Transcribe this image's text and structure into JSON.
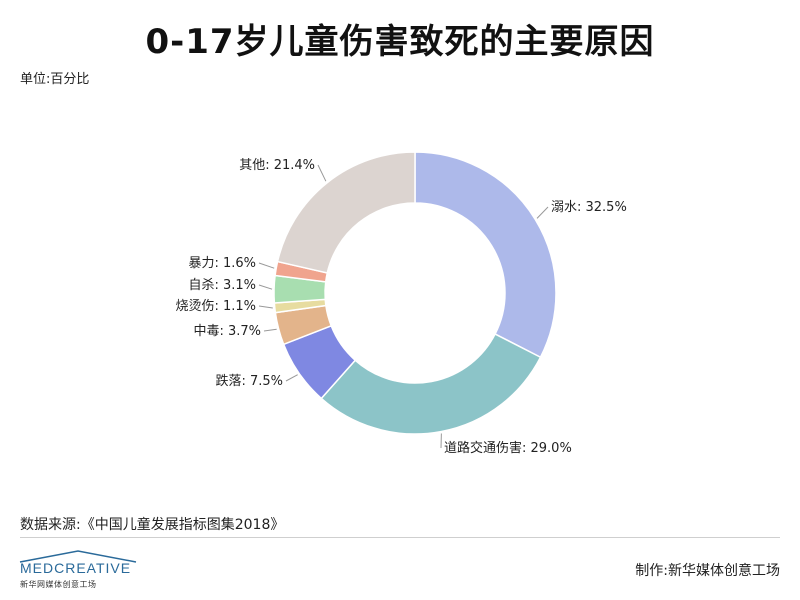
{
  "title": "0-17岁儿童伤害致死的主要原因",
  "unit_label": "单位:百分比",
  "source": "数据来源:《中国儿童发展指标图集2018》",
  "credit": "制作:新华媒体创意工场",
  "logo": {
    "text": "MEDCREATIVE",
    "subtitle": "新华网媒体创意工场"
  },
  "colors": {
    "溺水": "#adb9ea",
    "道路交通伤害": "#8cc4c8",
    "跌落": "#7f88e2",
    "中毒": "#e3b48b",
    "烧烫伤": "#e7dca0",
    "自杀": "#a8deb0",
    "暴力": "#f0a48e",
    "其他": "#dcd4d0"
  },
  "chart_data": {
    "type": "pie",
    "donut": true,
    "unit": "%",
    "categories": [
      "溺水",
      "道路交通伤害",
      "跌落",
      "中毒",
      "烧烫伤",
      "自杀",
      "暴力",
      "其他"
    ],
    "values": [
      32.5,
      29.0,
      7.5,
      3.7,
      1.1,
      3.1,
      1.6,
      21.4
    ],
    "labels": [
      "溺水: 32.5%",
      "道路交通伤害: 29.0%",
      "跌落: 7.5%",
      "中毒: 3.7%",
      "烧烫伤: 1.1%",
      "自杀: 3.1%",
      "暴力: 1.6%",
      "其他: 21.4%"
    ],
    "start_angle": "12 o'clock",
    "direction": "clockwise"
  }
}
